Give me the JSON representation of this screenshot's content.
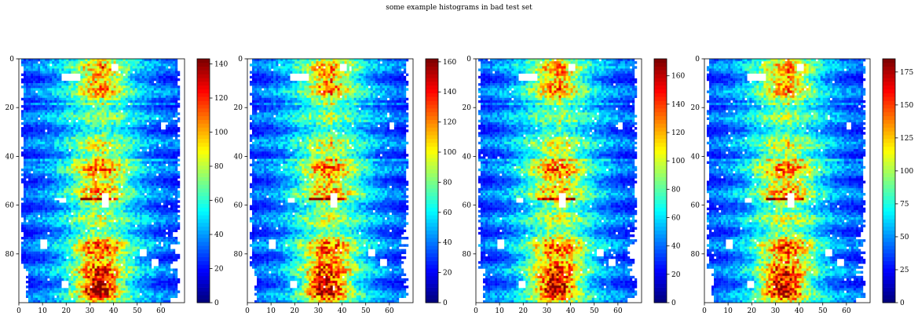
{
  "title": "some example histograms in bad test set",
  "chart_data": [
    {
      "type": "heatmap",
      "x_range": [
        0,
        70
      ],
      "y_range": [
        0,
        100
      ],
      "xticks": [
        0,
        10,
        20,
        30,
        40,
        50,
        60
      ],
      "yticks": [
        0,
        20,
        40,
        60,
        80
      ],
      "colormap": "jet",
      "colorbar": {
        "min": 0,
        "max": 143,
        "ticks": [
          0,
          20,
          40,
          60,
          80,
          100,
          120,
          140
        ]
      }
    },
    {
      "type": "heatmap",
      "x_range": [
        0,
        70
      ],
      "y_range": [
        0,
        100
      ],
      "xticks": [
        0,
        10,
        20,
        30,
        40,
        50,
        60
      ],
      "yticks": [
        0,
        20,
        40,
        60,
        80
      ],
      "colormap": "jet",
      "colorbar": {
        "min": 0,
        "max": 162,
        "ticks": [
          0,
          20,
          40,
          60,
          80,
          100,
          120,
          140,
          160
        ]
      }
    },
    {
      "type": "heatmap",
      "x_range": [
        0,
        70
      ],
      "y_range": [
        0,
        100
      ],
      "xticks": [
        0,
        10,
        20,
        30,
        40,
        50,
        60
      ],
      "yticks": [
        0,
        20,
        40,
        60,
        80
      ],
      "colormap": "jet",
      "colorbar": {
        "min": 0,
        "max": 172,
        "ticks": [
          0,
          20,
          40,
          60,
          80,
          100,
          120,
          140,
          160
        ]
      }
    },
    {
      "type": "heatmap",
      "x_range": [
        0,
        70
      ],
      "y_range": [
        0,
        100
      ],
      "xticks": [
        0,
        10,
        20,
        30,
        40,
        50,
        60
      ],
      "yticks": [
        0,
        20,
        40,
        60,
        80
      ],
      "colormap": "jet",
      "colorbar": {
        "min": 0,
        "max": 185,
        "ticks": [
          0,
          25,
          50,
          75,
          100,
          125,
          150,
          175
        ]
      }
    }
  ]
}
